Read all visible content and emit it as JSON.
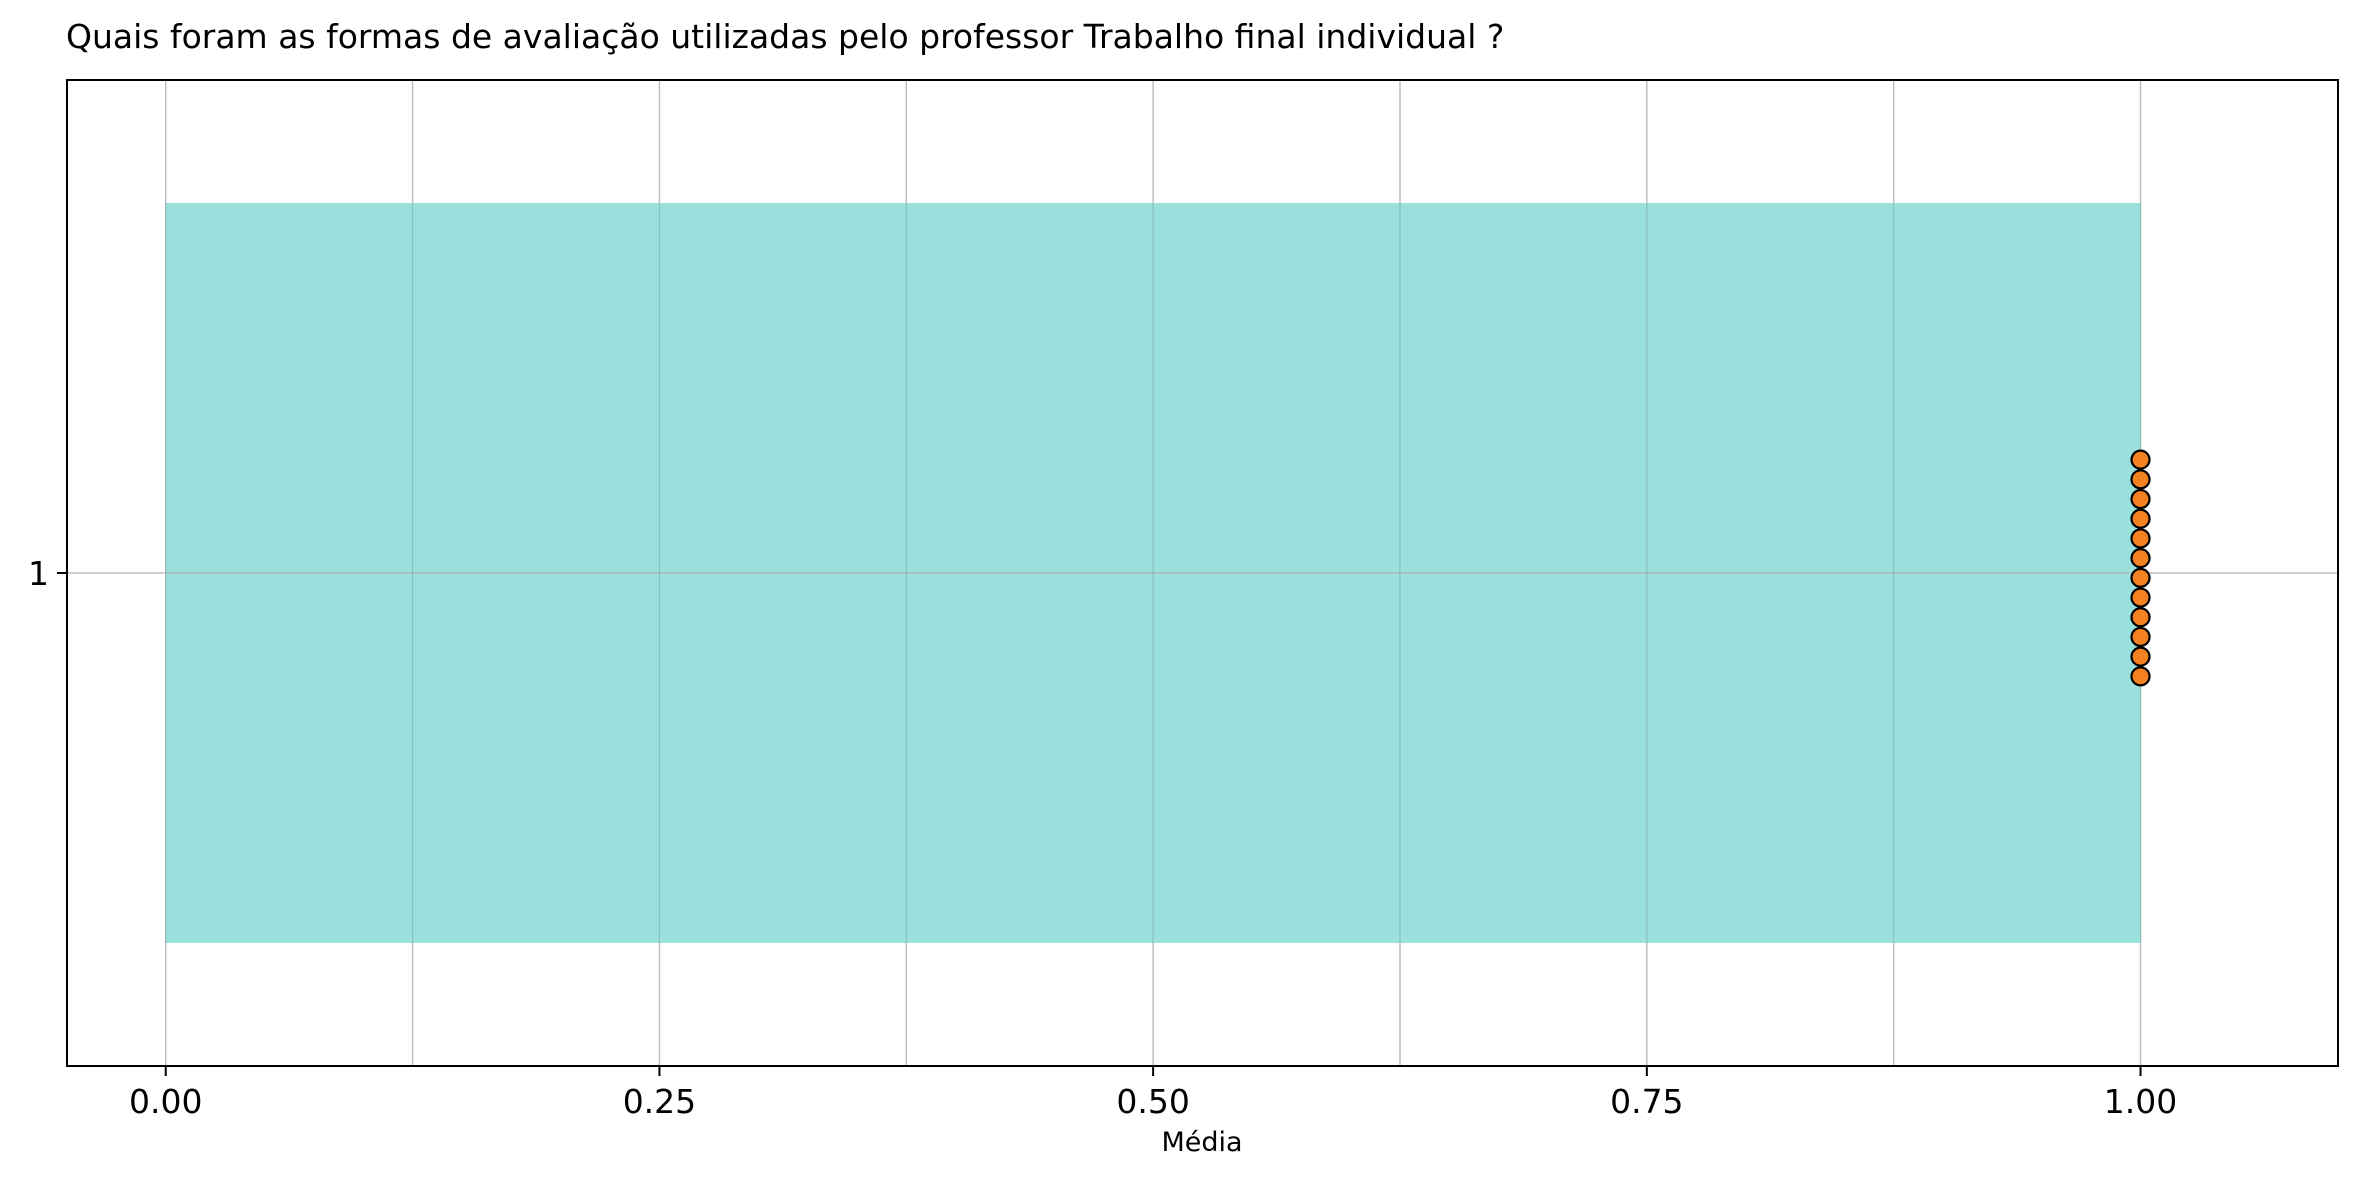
{
  "chart_data": {
    "type": "bar",
    "orientation": "horizontal",
    "title": "Quais foram as formas de avaliação utilizadas pelo professor Trabalho final individual ?",
    "xlabel": "Média",
    "ylabel": "",
    "categories": [
      "1"
    ],
    "values": [
      1.0
    ],
    "xlim": [
      -0.05,
      1.1
    ],
    "xticks": [
      "0.00",
      "0.25",
      "0.50",
      "0.75",
      "1.00"
    ],
    "xtick_values": [
      0,
      0.25,
      0.5,
      0.75,
      1.0
    ],
    "minor_grid_values": [
      0.125,
      0.375,
      0.625,
      0.875
    ],
    "grid": true,
    "bar_color": "#9ae0dd",
    "points": {
      "color": "#f58220",
      "edge_color": "#000000",
      "x": [
        1.0,
        1.0,
        1.0,
        1.0,
        1.0,
        1.0,
        1.0,
        1.0,
        1.0,
        1.0,
        1.0,
        1.0
      ]
    }
  }
}
